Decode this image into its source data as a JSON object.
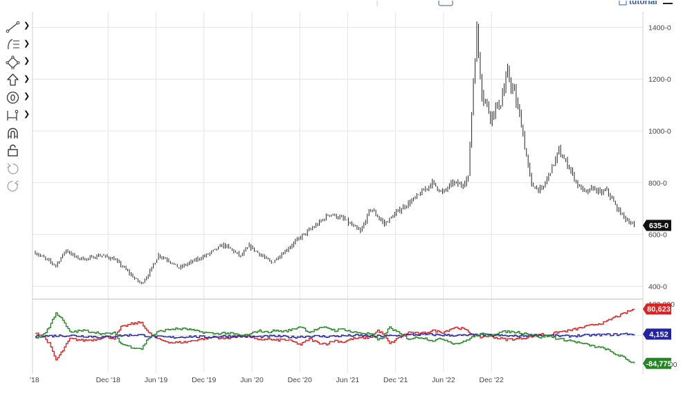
{
  "icons": {
    "tools": [
      "trendline-icon",
      "fibonacci-icon",
      "shape-icon",
      "arrow-up-icon",
      "annotation-icon",
      "measure-icon",
      "magnet-icon",
      "lock-icon",
      "undo-icon",
      "redo-icon"
    ]
  },
  "topbar": {
    "tutorial_label": "tutorial"
  },
  "chart_data": [
    {
      "type": "ohlc",
      "x_ticks": [
        "'18",
        "Dec '18",
        "Jun '19",
        "Dec '19",
        "Jun '20",
        "Dec '20",
        "Jun '21",
        "Dec '21",
        "Jun '22",
        "Dec '22"
      ],
      "y_ticks": [
        "400-0",
        "600-0",
        "800-0",
        "1000-0",
        "1200-0",
        "1400-0"
      ],
      "ylim": [
        350,
        1460
      ],
      "last_price": "635-0",
      "price_path": [
        [
          0,
          530
        ],
        [
          6,
          505
        ],
        [
          12,
          480
        ],
        [
          18,
          540
        ],
        [
          24,
          510
        ],
        [
          30,
          505
        ],
        [
          38,
          520
        ],
        [
          46,
          505
        ],
        [
          52,
          470
        ],
        [
          58,
          430
        ],
        [
          62,
          410
        ],
        [
          66,
          445
        ],
        [
          72,
          520
        ],
        [
          78,
          500
        ],
        [
          84,
          470
        ],
        [
          90,
          490
        ],
        [
          100,
          520
        ],
        [
          110,
          560
        ],
        [
          115,
          540
        ],
        [
          120,
          515
        ],
        [
          125,
          555
        ],
        [
          132,
          520
        ],
        [
          138,
          490
        ],
        [
          145,
          530
        ],
        [
          155,
          590
        ],
        [
          165,
          640
        ],
        [
          172,
          680
        ],
        [
          180,
          660
        ],
        [
          190,
          610
        ],
        [
          196,
          700
        ],
        [
          204,
          640
        ],
        [
          212,
          690
        ],
        [
          222,
          740
        ],
        [
          232,
          800
        ],
        [
          238,
          760
        ],
        [
          244,
          800
        ],
        [
          249,
          790
        ],
        [
          253,
          820
        ],
        [
          256,
          1200
        ],
        [
          258,
          1380
        ],
        [
          261,
          1150
        ],
        [
          266,
          1060
        ],
        [
          272,
          1110
        ],
        [
          276,
          1220
        ],
        [
          280,
          1140
        ],
        [
          284,
          1030
        ],
        [
          287,
          900
        ],
        [
          290,
          790
        ],
        [
          296,
          770
        ],
        [
          300,
          830
        ],
        [
          306,
          920
        ],
        [
          312,
          860
        ],
        [
          317,
          790
        ],
        [
          322,
          760
        ],
        [
          326,
          780
        ],
        [
          330,
          760
        ],
        [
          334,
          770
        ],
        [
          340,
          700
        ],
        [
          345,
          660
        ],
        [
          350,
          635
        ]
      ]
    },
    {
      "type": "line",
      "ylim": [
        -100000,
        100000
      ],
      "series": [
        {
          "color": "#dd2222",
          "values": [
            [
              0,
              10000
            ],
            [
              5,
              -5000
            ],
            [
              8,
              -25000
            ],
            [
              12,
              -75000
            ],
            [
              16,
              -45000
            ],
            [
              20,
              -10000
            ],
            [
              28,
              -15000
            ],
            [
              35,
              -12000
            ],
            [
              40,
              -4000
            ],
            [
              46,
              -8000
            ],
            [
              50,
              25000
            ],
            [
              56,
              35000
            ],
            [
              62,
              40000
            ],
            [
              66,
              8000
            ],
            [
              72,
              -12000
            ],
            [
              80,
              -22000
            ],
            [
              88,
              -20000
            ],
            [
              95,
              -12000
            ],
            [
              105,
              -5000
            ],
            [
              110,
              -10000
            ],
            [
              115,
              -5000
            ],
            [
              120,
              0
            ],
            [
              125,
              -2000
            ],
            [
              130,
              -15000
            ],
            [
              135,
              -10000
            ],
            [
              140,
              -15000
            ],
            [
              145,
              -12000
            ],
            [
              150,
              -18000
            ],
            [
              155,
              -28000
            ],
            [
              160,
              -10000
            ],
            [
              165,
              -22000
            ],
            [
              170,
              -25000
            ],
            [
              175,
              -15000
            ],
            [
              180,
              -20000
            ],
            [
              185,
              -10000
            ],
            [
              190,
              -8000
            ],
            [
              196,
              -5000
            ],
            [
              200,
              15000
            ],
            [
              203,
              5000
            ],
            [
              207,
              -25000
            ],
            [
              212,
              -8000
            ],
            [
              218,
              10000
            ],
            [
              225,
              5000
            ],
            [
              232,
              15000
            ],
            [
              238,
              10000
            ],
            [
              245,
              25000
            ],
            [
              250,
              20000
            ],
            [
              255,
              5000
            ],
            [
              260,
              -5000
            ],
            [
              265,
              0
            ],
            [
              270,
              -8000
            ],
            [
              275,
              -12000
            ],
            [
              282,
              -10000
            ],
            [
              288,
              -5000
            ],
            [
              295,
              5000
            ],
            [
              300,
              0
            ],
            [
              305,
              10000
            ],
            [
              312,
              15000
            ],
            [
              320,
              25000
            ],
            [
              328,
              35000
            ],
            [
              333,
              40000
            ],
            [
              338,
              55000
            ],
            [
              342,
              62000
            ],
            [
              346,
              72000
            ],
            [
              350,
              80623
            ]
          ]
        },
        {
          "color": "#2222aa",
          "values": [
            [
              0,
              -2000
            ],
            [
              20,
              0
            ],
            [
              40,
              -5000
            ],
            [
              50,
              0
            ],
            [
              60,
              2000
            ],
            [
              70,
              -4000
            ],
            [
              80,
              -6000
            ],
            [
              90,
              -3000
            ],
            [
              100,
              -5000
            ],
            [
              110,
              -2000
            ],
            [
              120,
              -3000
            ],
            [
              130,
              -4000
            ],
            [
              140,
              -2000
            ],
            [
              150,
              -5000
            ],
            [
              160,
              -2000
            ],
            [
              170,
              -3000
            ],
            [
              180,
              -1000
            ],
            [
              190,
              0
            ],
            [
              200,
              -2000
            ],
            [
              210,
              -1000
            ],
            [
              220,
              2000
            ],
            [
              230,
              3000
            ],
            [
              240,
              1000
            ],
            [
              250,
              0
            ],
            [
              260,
              2000
            ],
            [
              270,
              0
            ],
            [
              280,
              -2000
            ],
            [
              290,
              1000
            ],
            [
              300,
              0
            ],
            [
              310,
              -2000
            ],
            [
              320,
              0
            ],
            [
              330,
              2000
            ],
            [
              340,
              3000
            ],
            [
              345,
              5000
            ],
            [
              350,
              4152
            ]
          ]
        },
        {
          "color": "#228822",
          "values": [
            [
              0,
              -10000
            ],
            [
              5,
              5000
            ],
            [
              8,
              25000
            ],
            [
              12,
              70000
            ],
            [
              16,
              45000
            ],
            [
              20,
              10000
            ],
            [
              28,
              15000
            ],
            [
              35,
              10000
            ],
            [
              40,
              4000
            ],
            [
              46,
              8000
            ],
            [
              50,
              -25000
            ],
            [
              56,
              -35000
            ],
            [
              62,
              -40000
            ],
            [
              66,
              -8000
            ],
            [
              72,
              12000
            ],
            [
              80,
              20000
            ],
            [
              88,
              20000
            ],
            [
              95,
              12000
            ],
            [
              105,
              5000
            ],
            [
              110,
              8000
            ],
            [
              115,
              5000
            ],
            [
              120,
              0
            ],
            [
              125,
              2000
            ],
            [
              130,
              15000
            ],
            [
              135,
              10000
            ],
            [
              140,
              15000
            ],
            [
              145,
              12000
            ],
            [
              150,
              18000
            ],
            [
              155,
              28000
            ],
            [
              160,
              10000
            ],
            [
              165,
              20000
            ],
            [
              170,
              25000
            ],
            [
              175,
              15000
            ],
            [
              180,
              20000
            ],
            [
              185,
              10000
            ],
            [
              190,
              8000
            ],
            [
              196,
              5000
            ],
            [
              200,
              -15000
            ],
            [
              203,
              -5000
            ],
            [
              207,
              25000
            ],
            [
              212,
              8000
            ],
            [
              218,
              -10000
            ],
            [
              225,
              -5000
            ],
            [
              232,
              -15000
            ],
            [
              238,
              -10000
            ],
            [
              245,
              -25000
            ],
            [
              250,
              -20000
            ],
            [
              255,
              -5000
            ],
            [
              260,
              5000
            ],
            [
              265,
              0
            ],
            [
              270,
              8000
            ],
            [
              275,
              12000
            ],
            [
              282,
              10000
            ],
            [
              288,
              5000
            ],
            [
              295,
              -5000
            ],
            [
              300,
              0
            ],
            [
              305,
              -10000
            ],
            [
              312,
              -15000
            ],
            [
              320,
              -25000
            ],
            [
              328,
              -35000
            ],
            [
              333,
              -40000
            ],
            [
              338,
              -55000
            ],
            [
              342,
              -62000
            ],
            [
              346,
              -75000
            ],
            [
              350,
              -84775
            ]
          ]
        }
      ],
      "y_ticks": [
        "100,000",
        "-100,000"
      ],
      "last_values": [
        "80,623",
        "4,152",
        "-84,775"
      ]
    }
  ]
}
